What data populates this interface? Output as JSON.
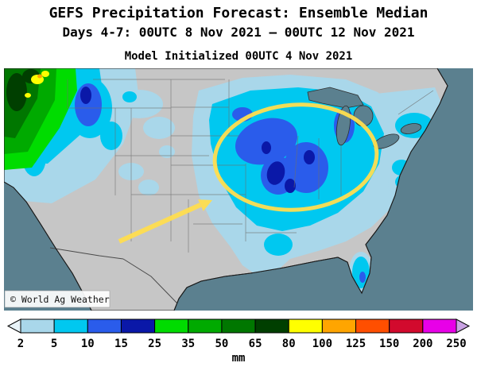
{
  "header": {
    "title": "GEFS Precipitation Forecast: Ensemble Median",
    "subtitle": "Days 4-7: 00UTC 8 Nov 2021 — 00UTC 12 Nov 2021",
    "init_line": "Model Initialized 00UTC 4 Nov 2021"
  },
  "map": {
    "watermark": "© World Ag Weather",
    "ocean_color": "#5B808F",
    "land_color": "#C6C6C6",
    "annotations": {
      "ellipse_color": "#FFDE4F",
      "arrow_color": "#FFDE4F"
    }
  },
  "colorbar": {
    "unit": "mm",
    "ticks": [
      "2",
      "5",
      "10",
      "15",
      "25",
      "35",
      "50",
      "65",
      "80",
      "100",
      "125",
      "150",
      "200",
      "250"
    ],
    "below_min_color": "#E8F3F8",
    "above_max_color": "#C9A3E3",
    "segment_colors": [
      "#A9D7EA",
      "#00C8F0",
      "#2A5CEB",
      "#0A18A8",
      "#00DC00",
      "#00AA00",
      "#007700",
      "#003F00",
      "#FFFF00",
      "#FFA500",
      "#FF4F00",
      "#D20A2D",
      "#E800E8"
    ]
  }
}
